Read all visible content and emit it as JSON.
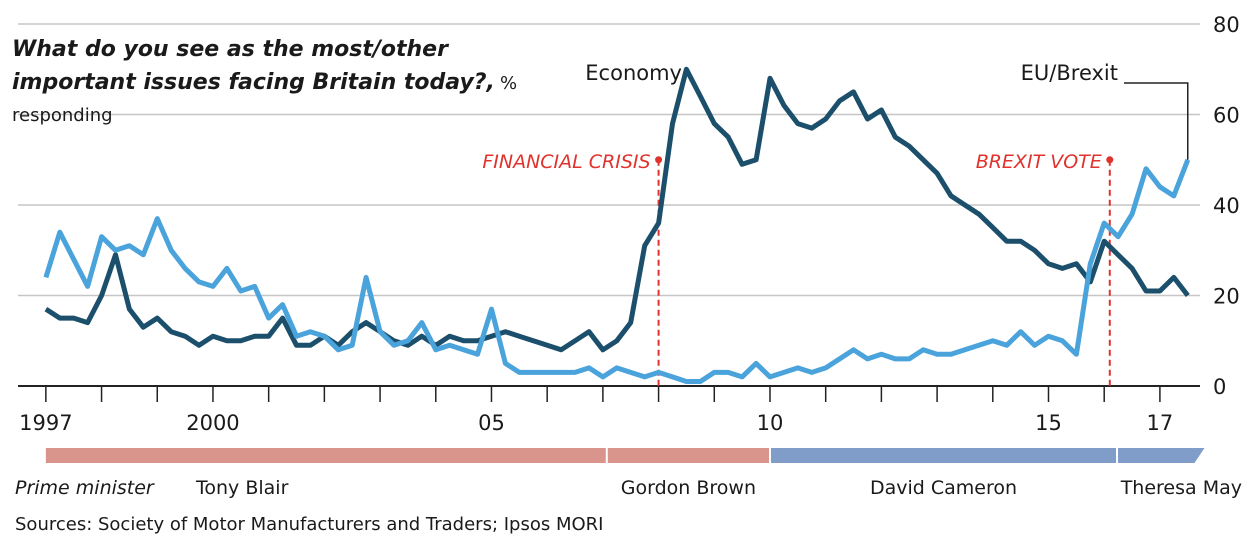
{
  "chart_data": {
    "type": "line",
    "title": "What do you see as the most/other important issues facing Britain today?,",
    "subtitle": "% responding",
    "source": "Sources: Society of Motor Manufacturers and Traders; Ipsos MORI",
    "x": [
      1997.0,
      1997.25,
      1997.5,
      1997.75,
      1998.0,
      1998.25,
      1998.5,
      1998.75,
      1999.0,
      1999.25,
      1999.5,
      1999.75,
      2000.0,
      2000.25,
      2000.5,
      2000.75,
      2001.0,
      2001.25,
      2001.5,
      2001.75,
      2002.0,
      2002.25,
      2002.5,
      2002.75,
      2003.0,
      2003.25,
      2003.5,
      2003.75,
      2004.0,
      2004.25,
      2004.5,
      2004.75,
      2005.0,
      2005.25,
      2005.5,
      2005.75,
      2006.0,
      2006.25,
      2006.5,
      2006.75,
      2007.0,
      2007.25,
      2007.5,
      2007.75,
      2008.0,
      2008.25,
      2008.5,
      2008.75,
      2009.0,
      2009.25,
      2009.5,
      2009.75,
      2010.0,
      2010.25,
      2010.5,
      2010.75,
      2011.0,
      2011.25,
      2011.5,
      2011.75,
      2012.0,
      2012.25,
      2012.5,
      2012.75,
      2013.0,
      2013.25,
      2013.5,
      2013.75,
      2014.0,
      2014.25,
      2014.5,
      2014.75,
      2015.0,
      2015.25,
      2015.5,
      2015.75,
      2016.0,
      2016.25,
      2016.5,
      2016.75,
      2017.0,
      2017.25,
      2017.5
    ],
    "series": [
      {
        "name": "Economy",
        "color": "#1c4f6b",
        "values": [
          17,
          15,
          15,
          14,
          20,
          29,
          17,
          13,
          15,
          12,
          11,
          9,
          11,
          10,
          10,
          11,
          11,
          15,
          9,
          9,
          11,
          9,
          12,
          14,
          12,
          10,
          9,
          11,
          9,
          11,
          10,
          10,
          11,
          12,
          11,
          10,
          9,
          8,
          10,
          12,
          8,
          10,
          14,
          31,
          36,
          58,
          70,
          64,
          58,
          55,
          49,
          50,
          68,
          62,
          58,
          57,
          59,
          63,
          65,
          59,
          61,
          55,
          53,
          50,
          47,
          42,
          40,
          38,
          35,
          32,
          32,
          30,
          27,
          26,
          27,
          23,
          32,
          29,
          26,
          21,
          21,
          24,
          20
        ]
      },
      {
        "name": "EU/Brexit",
        "color": "#4ba3dc",
        "values": [
          24,
          34,
          28,
          22,
          33,
          30,
          31,
          29,
          37,
          30,
          26,
          23,
          22,
          26,
          21,
          22,
          15,
          18,
          11,
          12,
          11,
          8,
          9,
          24,
          12,
          9,
          10,
          14,
          8,
          9,
          8,
          7,
          17,
          5,
          3,
          3,
          3,
          3,
          3,
          4,
          2,
          4,
          3,
          2,
          3,
          2,
          1,
          1,
          3,
          3,
          2,
          5,
          2,
          3,
          4,
          3,
          4,
          6,
          8,
          6,
          7,
          6,
          6,
          8,
          7,
          7,
          8,
          9,
          10,
          9,
          12,
          9,
          11,
          10,
          7,
          27,
          36,
          33,
          38,
          48,
          44,
          42,
          50
        ]
      }
    ],
    "xlim": [
      1996.5,
      2017.63
    ],
    "xticks": [
      {
        "value": 1997,
        "label": "1997"
      },
      2000,
      {
        "value": 2005,
        "label": "05"
      },
      {
        "value": 2010,
        "label": "10"
      },
      {
        "value": 2015,
        "label": "15"
      },
      {
        "value": 2017,
        "label": "17"
      }
    ],
    "xminorticks": [
      1998,
      1999,
      2001,
      2002,
      2003,
      2004,
      2006,
      2007,
      2008,
      2009,
      2011,
      2012,
      2013,
      2014,
      2016
    ],
    "ylim": [
      0,
      80
    ],
    "yticks": [
      0,
      20,
      40,
      60,
      80
    ],
    "grid": true,
    "annotations": [
      {
        "text": "FINANCIAL CRISIS",
        "x": 2008.0,
        "y": 50,
        "color": "#e0332d"
      },
      {
        "text": "BREXIT VOTE",
        "x": 2016.1,
        "y": 50,
        "color": "#e0332d"
      }
    ],
    "timeline": {
      "label": "Prime minister",
      "segments": [
        {
          "name": "Tony Blair",
          "start": 1997.0,
          "end": 2007.07,
          "color": "#d9948b"
        },
        {
          "name": "Gordon Brown",
          "start": 2007.07,
          "end": 2010.0,
          "color": "#d9948b"
        },
        {
          "name": "David Cameron",
          "start": 2010.0,
          "end": 2016.23,
          "color": "#809cc9"
        },
        {
          "name": "Theresa May",
          "start": 2016.23,
          "end": 2017.8,
          "color": "#809cc9"
        }
      ]
    }
  }
}
